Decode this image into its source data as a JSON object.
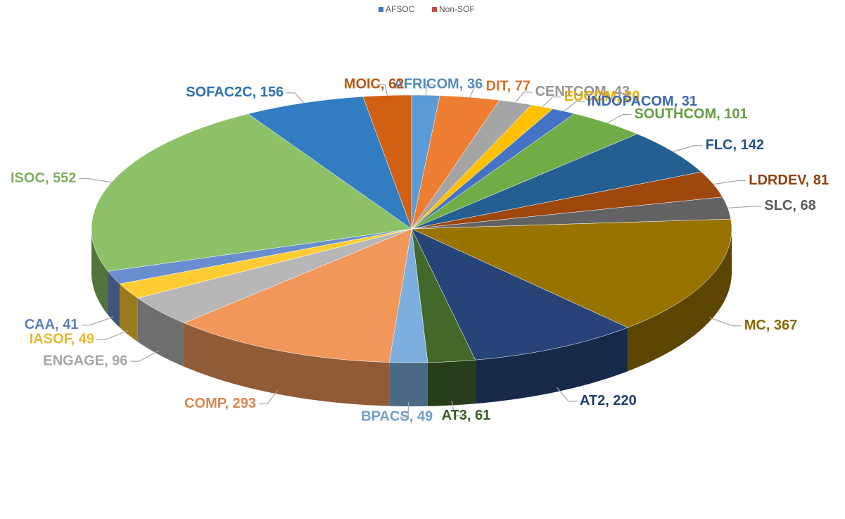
{
  "chart_data": {
    "type": "pie3d",
    "legend": [
      {
        "name": "AFSOC",
        "color": "#4472c4"
      },
      {
        "name": "Non-SOF",
        "color": "#c0504d"
      }
    ],
    "categories": [
      "AFRICOM",
      "DIT",
      "CENTCOM",
      "EUCOM",
      "INDOPACOM",
      "SOUTHCOM",
      "FLC",
      "LDRDEV",
      "SLC",
      "MC",
      "AT2",
      "AT3",
      "BPACS",
      "COMP",
      "ENGAGE",
      "IASOF",
      "CAA",
      "ISOC",
      "SOFAC2C",
      "MOIC"
    ],
    "values": [
      36,
      77,
      43,
      30,
      31,
      101,
      142,
      81,
      68,
      367,
      220,
      61,
      49,
      293,
      96,
      49,
      41,
      552,
      156,
      62
    ],
    "value_labels": [
      "AFRICOM, 36",
      "DIT, 77",
      "CENTCOM, 43",
      "EUCOM, 30",
      "INDOPACOM, 31",
      "SOUTHCOM, 101",
      "FLC, 142",
      "LDRDEV, 81",
      "SLC, 68",
      "MC, 367",
      "AT2, 220",
      "AT3, 61",
      "BPACS, 49",
      "COMP, 293",
      "ENGAGE, 96",
      "IASOF, 49",
      "CAA, 41",
      "ISOC, 552",
      "SOFAC2C, 156",
      "MOIC, 62"
    ],
    "colors": [
      "#5b9bd5",
      "#ed7d31",
      "#a5a5a5",
      "#ffc000",
      "#4472c4",
      "#70ad47",
      "#255e91",
      "#9e480e",
      "#636363",
      "#997300",
      "#264478",
      "#43682b",
      "#7cafdd",
      "#f1975a",
      "#b7b7b7",
      "#ffcd33",
      "#698ed0",
      "#8cc168",
      "#327dc2",
      "#d26012"
    ]
  }
}
